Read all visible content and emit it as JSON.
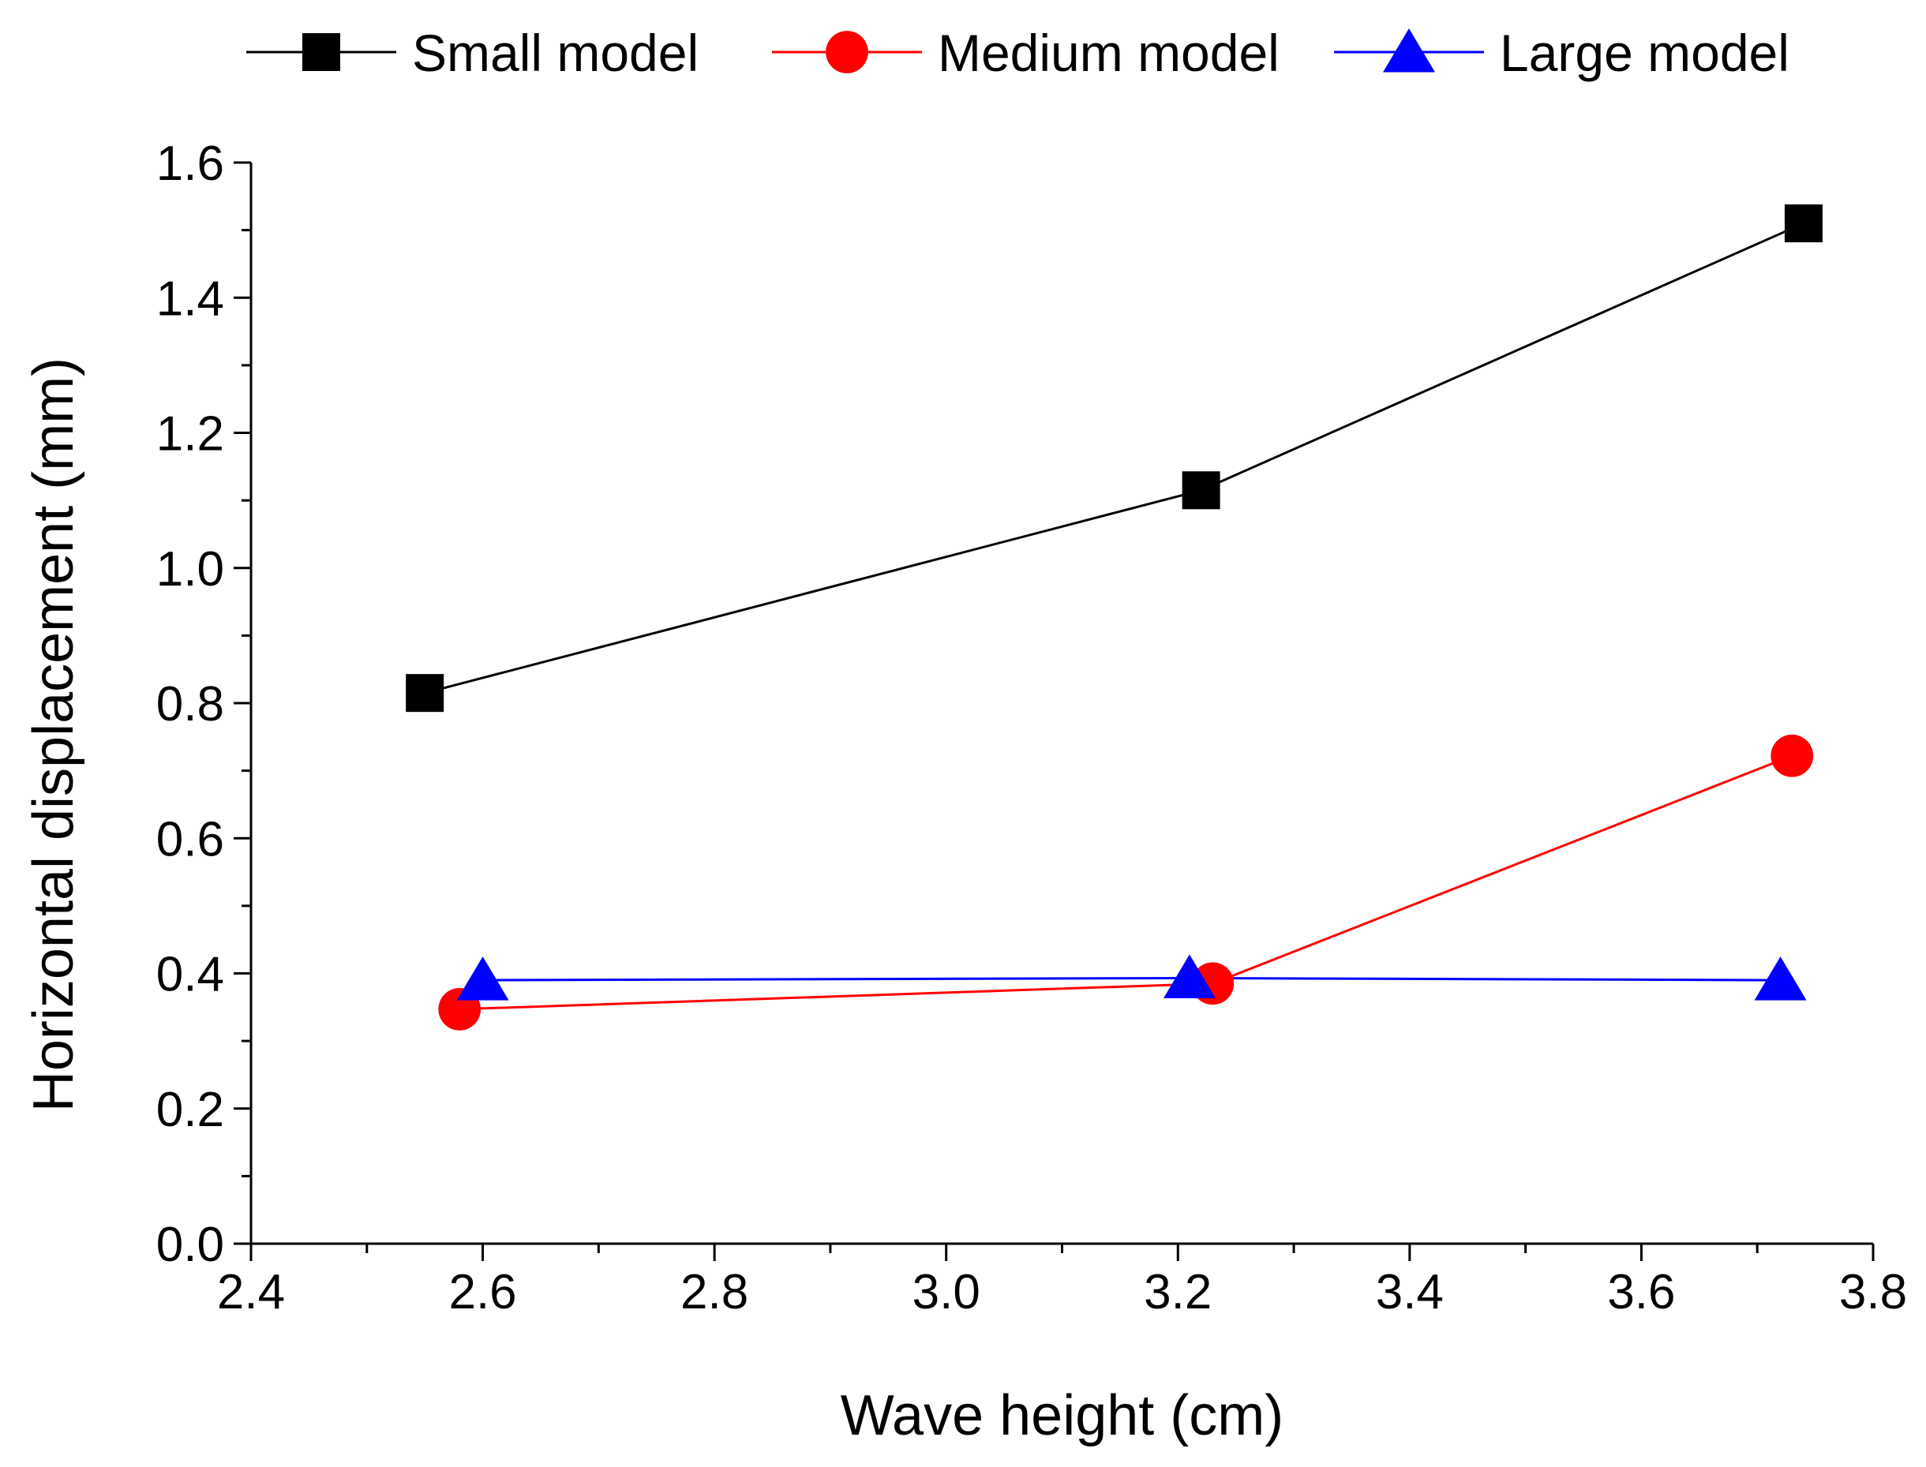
{
  "chart_data": {
    "type": "line",
    "title": "",
    "xlabel": "Wave height (cm)",
    "ylabel": "Horizontal displacement (mm)",
    "xlim": [
      2.4,
      3.8
    ],
    "ylim": [
      0.0,
      1.6
    ],
    "xticks": [
      2.4,
      2.6,
      2.8,
      3.0,
      3.2,
      3.4,
      3.6,
      3.8
    ],
    "xtick_labels": [
      "2.4",
      "2.6",
      "2.8",
      "3.0",
      "3.2",
      "3.4",
      "3.6",
      "3.8"
    ],
    "yticks": [
      0.0,
      0.2,
      0.4,
      0.6,
      0.8,
      1.0,
      1.2,
      1.4,
      1.6
    ],
    "ytick_labels": [
      "0.0",
      "0.2",
      "0.4",
      "0.6",
      "0.8",
      "1.0",
      "1.2",
      "1.4",
      "1.6"
    ],
    "grid": false,
    "legend_position": "top",
    "series": [
      {
        "name": "Small model",
        "color": "#000000",
        "marker": "square",
        "x": [
          2.55,
          3.22,
          3.74
        ],
        "y": [
          0.815,
          1.115,
          1.51
        ]
      },
      {
        "name": "Medium model",
        "color": "#ff0000",
        "marker": "circle",
        "x": [
          2.58,
          3.23,
          3.73
        ],
        "y": [
          0.347,
          0.385,
          0.722
        ]
      },
      {
        "name": "Large model",
        "color": "#0000ff",
        "marker": "triangle",
        "x": [
          2.6,
          3.21,
          3.72
        ],
        "y": [
          0.39,
          0.393,
          0.39
        ]
      }
    ]
  }
}
